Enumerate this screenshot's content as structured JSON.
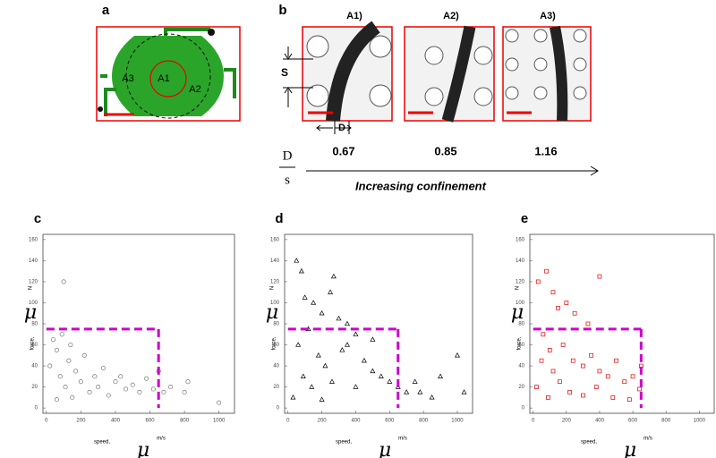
{
  "panel_a": {
    "label": "a",
    "regions": [
      "A1",
      "A2",
      "A3"
    ]
  },
  "panel_b": {
    "label": "b",
    "images": [
      "A1)",
      "A2)",
      "A3)"
    ],
    "s_label": "S",
    "d_label": "D",
    "ratios": [
      0.67,
      0.85,
      1.16
    ],
    "fraction_num": "D",
    "fraction_den": "s",
    "arrow_label": "Increasing confinement"
  },
  "chart_data": [
    {
      "type": "scatter",
      "panel_label": "c",
      "marker": "circle",
      "color": "#777777",
      "ylabel_symbol": "μ",
      "ylabel_unit": "N",
      "ylabel": "force,",
      "xlabel": "speed,",
      "xlabel_unit": "m/s",
      "xlabel_symbol": "μ",
      "xlim": [
        -20,
        1090
      ],
      "ylim": [
        -5,
        165
      ],
      "xticks": [
        0,
        200,
        400,
        600,
        800,
        1000
      ],
      "yticks": [
        0,
        20,
        40,
        60,
        80,
        100,
        120,
        140,
        160
      ],
      "threshold": {
        "x": 650,
        "y": 75,
        "color": "#cc00cc"
      },
      "x": [
        20,
        40,
        60,
        80,
        100,
        110,
        130,
        150,
        170,
        200,
        220,
        250,
        280,
        300,
        330,
        360,
        400,
        430,
        460,
        500,
        540,
        580,
        620,
        650,
        680,
        720,
        800,
        820,
        1000,
        60,
        90,
        140
      ],
      "values": [
        40,
        65,
        55,
        30,
        120,
        20,
        45,
        10,
        35,
        25,
        50,
        15,
        30,
        20,
        38,
        12,
        25,
        30,
        18,
        22,
        15,
        28,
        18,
        35,
        15,
        20,
        15,
        25,
        5,
        8,
        70,
        60
      ]
    },
    {
      "type": "scatter",
      "panel_label": "d",
      "marker": "triangle",
      "color": "#000000",
      "ylabel_symbol": "μ",
      "ylabel_unit": "N",
      "ylabel": "force,",
      "xlabel": "speed,",
      "xlabel_unit": "m/s",
      "xlabel_symbol": "μ",
      "xlim": [
        -20,
        1090
      ],
      "ylim": [
        -5,
        165
      ],
      "xticks": [
        0,
        200,
        400,
        600,
        800,
        1000
      ],
      "yticks": [
        0,
        20,
        40,
        60,
        80,
        100,
        120,
        140,
        160
      ],
      "threshold": {
        "x": 650,
        "y": 75,
        "color": "#cc00cc"
      },
      "x": [
        50,
        80,
        100,
        150,
        200,
        250,
        300,
        350,
        120,
        60,
        180,
        220,
        90,
        140,
        260,
        320,
        400,
        450,
        500,
        550,
        600,
        650,
        700,
        750,
        780,
        850,
        900,
        1000,
        1040,
        400,
        30,
        200,
        270,
        350,
        500
      ],
      "values": [
        140,
        130,
        105,
        100,
        90,
        110,
        85,
        80,
        75,
        60,
        50,
        40,
        30,
        20,
        25,
        55,
        70,
        45,
        35,
        30,
        25,
        20,
        15,
        25,
        15,
        10,
        30,
        50,
        15,
        20,
        10,
        8,
        125,
        60,
        65
      ]
    },
    {
      "type": "scatter",
      "panel_label": "e",
      "marker": "square",
      "color": "#e00000",
      "ylabel_symbol": "μ",
      "ylabel_unit": "N",
      "ylabel": "force,",
      "xlabel": "speed,",
      "xlabel_unit": "m/s",
      "xlabel_symbol": "μ",
      "xlim": [
        -20,
        1090
      ],
      "ylim": [
        -5,
        165
      ],
      "xticks": [
        0,
        200,
        400,
        600,
        800,
        1000
      ],
      "yticks": [
        0,
        20,
        40,
        60,
        80,
        100,
        120,
        140,
        160
      ],
      "threshold": {
        "x": 650,
        "y": 75,
        "color": "#cc00cc"
      },
      "x": [
        30,
        80,
        120,
        150,
        200,
        250,
        330,
        400,
        60,
        100,
        180,
        240,
        300,
        350,
        400,
        450,
        500,
        550,
        600,
        650,
        20,
        90,
        160,
        220,
        300,
        380,
        480,
        580,
        640,
        120,
        50
      ],
      "values": [
        120,
        130,
        110,
        95,
        100,
        90,
        80,
        125,
        70,
        55,
        60,
        45,
        40,
        50,
        35,
        30,
        45,
        25,
        30,
        40,
        20,
        10,
        25,
        15,
        12,
        20,
        10,
        8,
        18,
        35,
        45
      ]
    }
  ]
}
